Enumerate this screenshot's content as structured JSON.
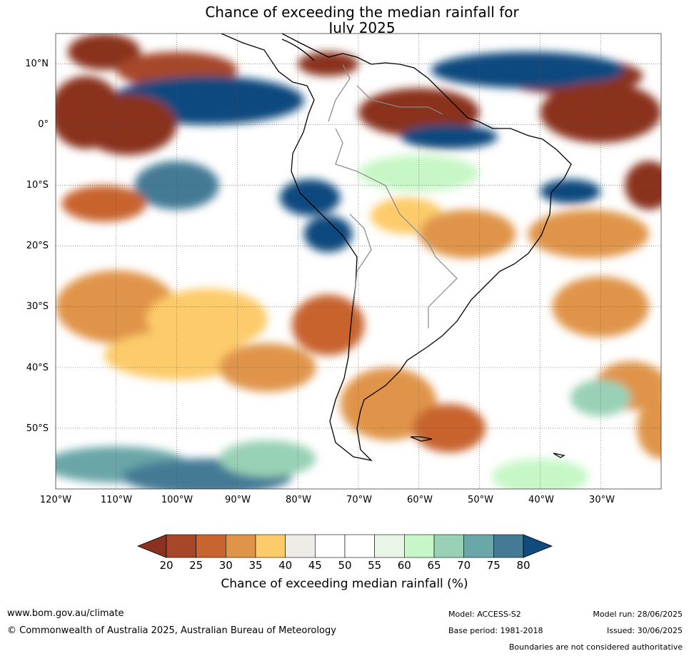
{
  "title": [
    "Chance of exceeding the median rainfall for",
    "July 2025"
  ],
  "map": {
    "lat_labels": [
      "10°N",
      "0°",
      "10°S",
      "20°S",
      "30°S",
      "40°S",
      "50°S"
    ],
    "lon_labels": [
      "120°W",
      "110°W",
      "100°W",
      "90°W",
      "80°W",
      "70°W",
      "60°W",
      "50°W",
      "40°W",
      "30°W"
    ],
    "lat_range": [
      -60,
      15
    ],
    "lon_range": [
      -120,
      -20
    ]
  },
  "colorbar": {
    "ticks": [
      "20",
      "25",
      "30",
      "35",
      "40",
      "45",
      "50",
      "55",
      "60",
      "65",
      "70",
      "75",
      "80"
    ],
    "colors": [
      "#a6472a",
      "#c8642f",
      "#e0944a",
      "#fdcb6a",
      "#eeece7",
      "#ffffff",
      "#ffffff",
      "#e8f5e7",
      "#c7f7c6",
      "#99d1b6",
      "#6ba6a8",
      "#457a95"
    ],
    "under_color": "#8a321f",
    "over_color": "#114a7e",
    "label": "Chance of exceeding median rainfall (%)"
  },
  "footer": {
    "url": "www.bom.gov.au/climate",
    "copyright": "© Commonwealth of Australia 2025, Australian Bureau of Meteorology",
    "model": "Model: ACCESS-S2",
    "base_period": "Base period: 1981-2018",
    "model_run": "Model run: 28/06/2025",
    "issued": "Issued: 30/06/2025",
    "disclaimer": "Boundaries are not considered authoritative"
  }
}
